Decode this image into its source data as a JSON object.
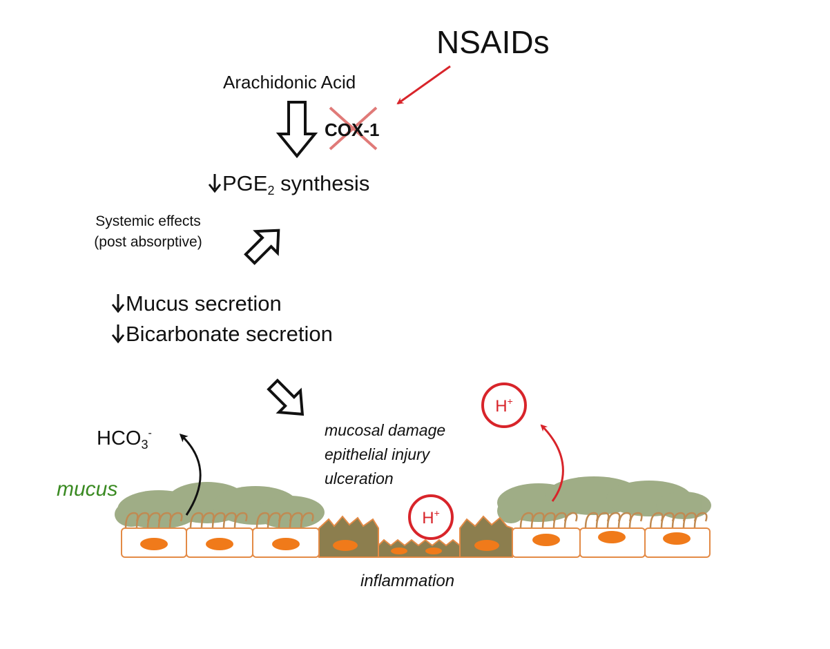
{
  "title": "NSAIDs",
  "pathway": {
    "substrate": "Arachidonic Acid",
    "enzyme": "COX-1",
    "pge_prefix": "PGE",
    "pge_sub": "2",
    "pge_suffix": " synthesis",
    "systemic_line1": "Systemic effects",
    "systemic_line2": "(post absorptive)",
    "mucus_secretion": "Mucus secretion",
    "bicarbonate_secretion": "Bicarbonate secretion"
  },
  "outcomes": {
    "line1": "mucosal damage",
    "line2": "epithelial injury",
    "line3": "ulceration"
  },
  "ions": {
    "bicarbonate_base": "HCO",
    "bicarbonate_sub": "3",
    "bicarbonate_sup": "-",
    "proton_base": "H",
    "proton_sup": "+"
  },
  "labels": {
    "mucus": "mucus",
    "inflammation": "inflammation"
  },
  "colors": {
    "inhibition_red": "#d8242a",
    "mucus_green": "#8f9f72",
    "mucus_label_green": "#3a8a22",
    "cell_border_orange": "#e38a45",
    "nucleus_orange": "#f07a1a",
    "damaged_cell_olive": "#8c7e4e"
  }
}
